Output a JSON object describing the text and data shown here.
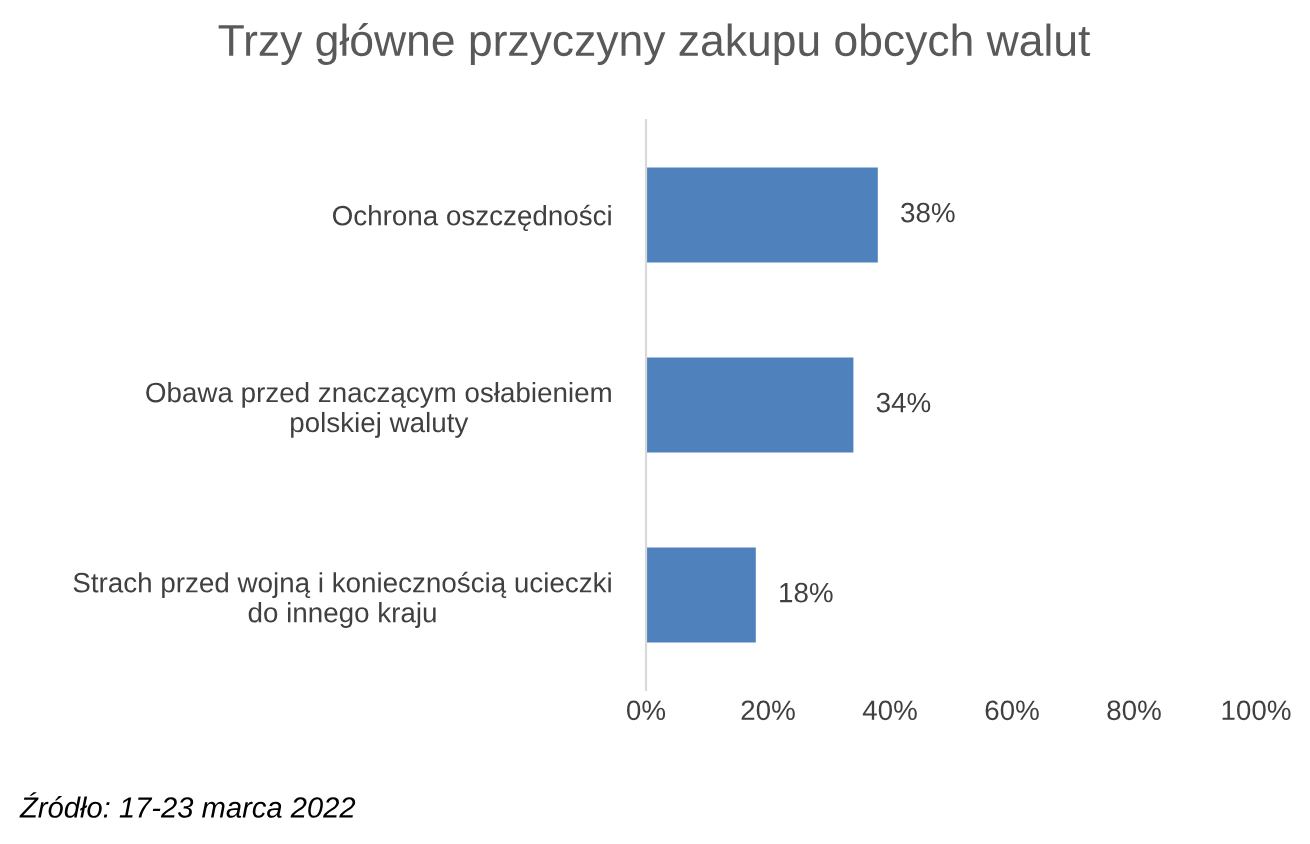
{
  "chart_data": {
    "type": "bar",
    "orientation": "horizontal",
    "title": "Trzy główne przyczyny zakupu obcych walut",
    "categories": [
      "Ochrona oszczędności",
      "Obawa przed znaczącym osłabieniem\npolskiej waluty",
      "Strach przed wojną i koniecznością ucieczki\ndo innego kraju"
    ],
    "values": [
      38,
      34,
      18
    ],
    "color": "#4f81bd",
    "value_labels": [
      "38%",
      "34%",
      "18%"
    ],
    "xlim": [
      0,
      100
    ],
    "xticks": [
      {
        "value": 0,
        "label": "0%"
      },
      {
        "value": 20,
        "label": "20%"
      },
      {
        "value": 40,
        "label": "40%"
      },
      {
        "value": 60,
        "label": "60%"
      },
      {
        "value": 80,
        "label": "80%"
      },
      {
        "value": 100,
        "label": "100%"
      }
    ],
    "grid": false,
    "legend": false,
    "annotations": [
      "Źródło: 17-23 marca 2022"
    ]
  }
}
